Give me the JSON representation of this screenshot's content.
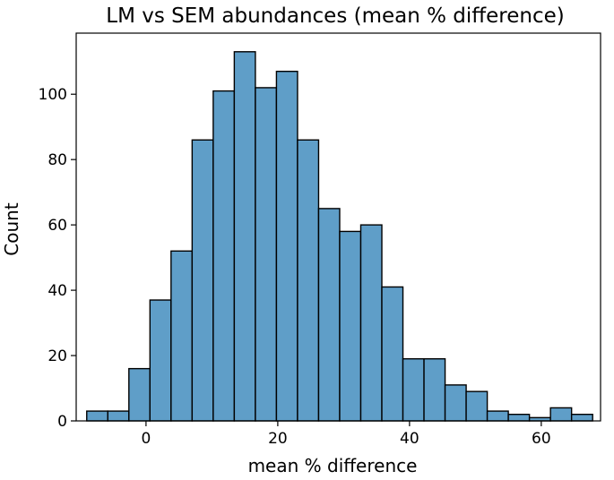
{
  "chart_data": {
    "type": "bar",
    "title": "LM vs SEM abundances (mean % difference)",
    "xlabel": "mean % difference",
    "ylabel": "Count",
    "bar_color": "#5f9ec8",
    "edge_color": "#000000",
    "bin_width": 3.2,
    "bin_start": -9.0,
    "x_range": [
      -10.6,
      69.0
    ],
    "y_range": [
      0,
      118.7
    ],
    "x_ticks": [
      0,
      20,
      40,
      60
    ],
    "y_ticks": [
      0,
      20,
      40,
      60,
      80,
      100
    ],
    "bins": [
      {
        "left": -9.0,
        "count": 3
      },
      {
        "left": -5.8,
        "count": 3
      },
      {
        "left": -2.6,
        "count": 16
      },
      {
        "left": 0.6,
        "count": 37
      },
      {
        "left": 3.8,
        "count": 52
      },
      {
        "left": 7.0,
        "count": 86
      },
      {
        "left": 10.2,
        "count": 101
      },
      {
        "left": 13.4,
        "count": 113
      },
      {
        "left": 16.6,
        "count": 102
      },
      {
        "left": 19.8,
        "count": 107
      },
      {
        "left": 23.0,
        "count": 86
      },
      {
        "left": 26.2,
        "count": 65
      },
      {
        "left": 29.4,
        "count": 58
      },
      {
        "left": 32.6,
        "count": 60
      },
      {
        "left": 35.8,
        "count": 41
      },
      {
        "left": 39.0,
        "count": 19
      },
      {
        "left": 42.2,
        "count": 19
      },
      {
        "left": 45.4,
        "count": 11
      },
      {
        "left": 48.6,
        "count": 9
      },
      {
        "left": 51.8,
        "count": 3
      },
      {
        "left": 55.0,
        "count": 2
      },
      {
        "left": 58.2,
        "count": 1
      },
      {
        "left": 61.4,
        "count": 4
      },
      {
        "left": 64.6,
        "count": 2
      }
    ]
  }
}
